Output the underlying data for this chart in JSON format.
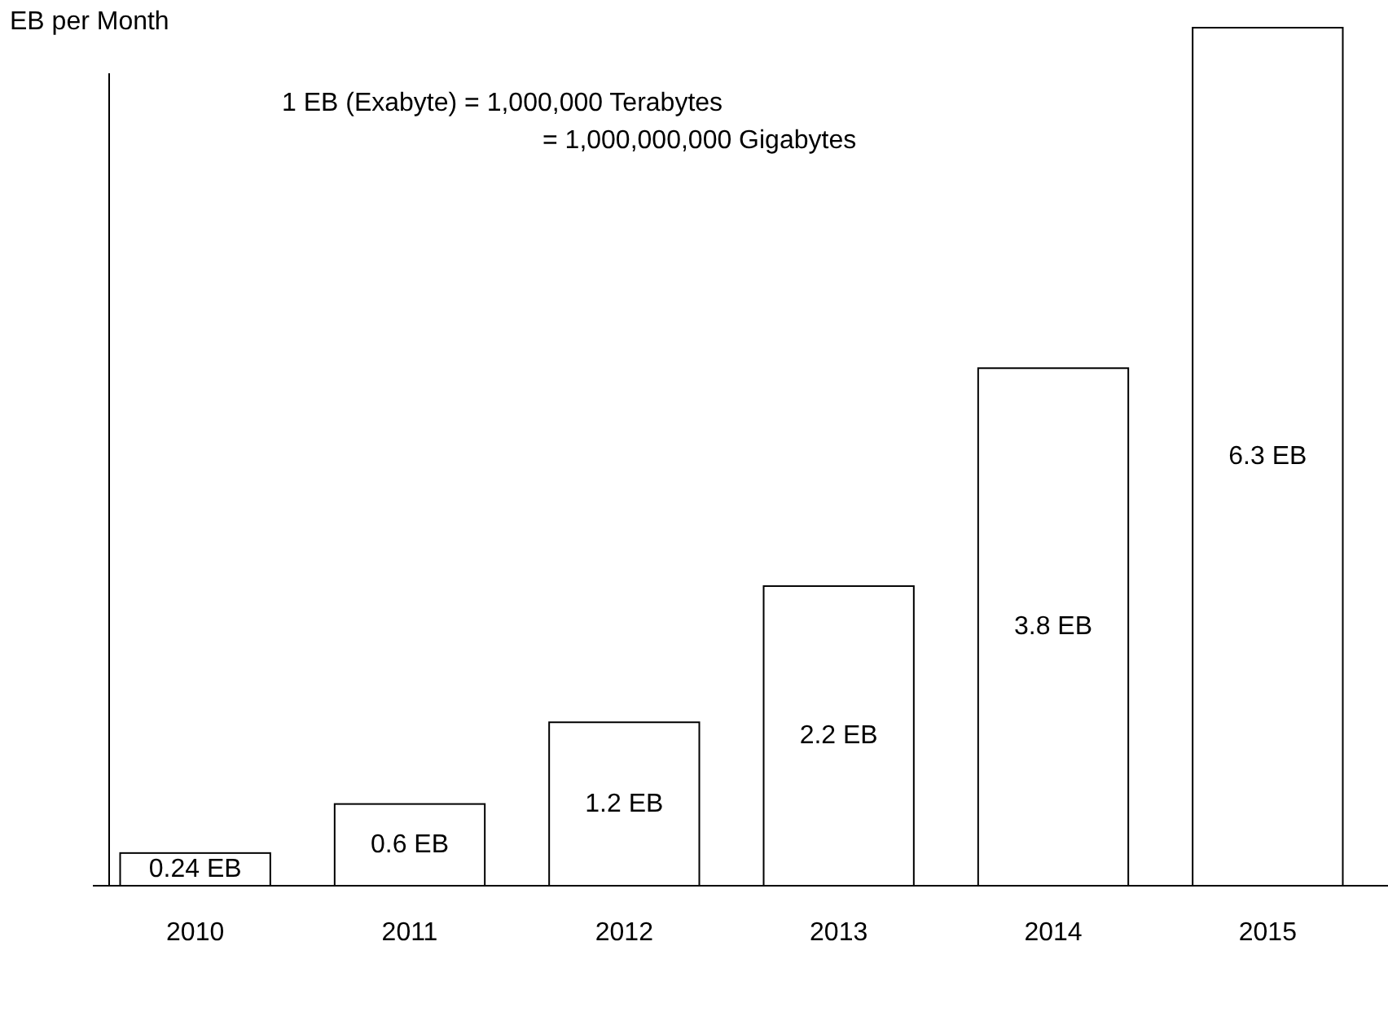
{
  "chart_data": {
    "type": "bar",
    "ylabel": "EB per Month",
    "categories": [
      "2010",
      "2011",
      "2012",
      "2013",
      "2014",
      "2015"
    ],
    "values": [
      0.24,
      0.6,
      1.2,
      2.2,
      3.8,
      6.3
    ],
    "value_labels": [
      "0.24 EB",
      "0.6 EB",
      "1.2 EB",
      "2.2 EB",
      "3.8 EB",
      "6.3 EB"
    ],
    "color": "#ffffff",
    "annotations": [
      "1 EB (Exabyte) = 1,000,000 Terabytes",
      "= 1,000,000,000 Gigabytes"
    ]
  }
}
